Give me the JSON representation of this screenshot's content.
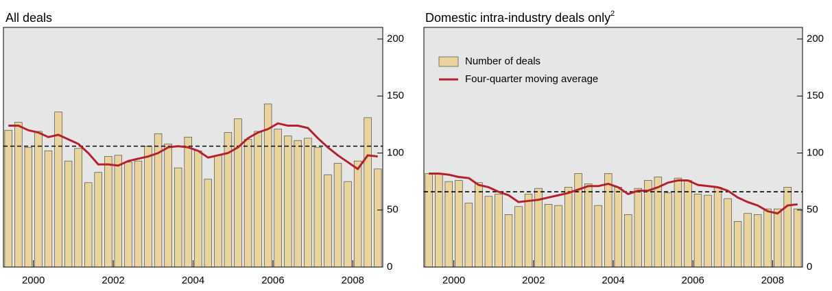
{
  "chart_data": [
    {
      "type": "bar_line",
      "title": "All deals",
      "x": [
        1999.375,
        1999.625,
        1999.875,
        2000.125,
        2000.375,
        2000.625,
        2000.875,
        2001.125,
        2001.375,
        2001.625,
        2001.875,
        2002.125,
        2002.375,
        2002.625,
        2002.875,
        2003.125,
        2003.375,
        2003.625,
        2003.875,
        2004.125,
        2004.375,
        2004.625,
        2004.875,
        2005.125,
        2005.375,
        2005.625,
        2005.875,
        2006.125,
        2006.375,
        2006.625,
        2006.875,
        2007.125,
        2007.375,
        2007.625,
        2007.875,
        2008.125,
        2008.375,
        2008.625
      ],
      "series": [
        {
          "name": "Number of deals",
          "kind": "bar",
          "color": "#e8d49c",
          "values": [
            120,
            127,
            105,
            119,
            102,
            136,
            93,
            104,
            74,
            83,
            97,
            98,
            92,
            93,
            106,
            117,
            108,
            87,
            114,
            102,
            77,
            98,
            118,
            130,
            112,
            119,
            143,
            121,
            115,
            111,
            113,
            105,
            81,
            91,
            75,
            93,
            131,
            86
          ]
        },
        {
          "name": "Four-quarter moving average",
          "kind": "line",
          "color": "#b5202e",
          "values": [
            124,
            124,
            120,
            118,
            114,
            116,
            112,
            108,
            100,
            90,
            90,
            89,
            93,
            95,
            97,
            100,
            105,
            106,
            105,
            102,
            96,
            98,
            100,
            105,
            113,
            118,
            121,
            126,
            124,
            124,
            122,
            113,
            105,
            98,
            92,
            86,
            98,
            97
          ]
        }
      ],
      "average_line": 106,
      "xlim": [
        1999.25,
        2008.75
      ],
      "xticks": [
        2000,
        2002,
        2004,
        2006,
        2008
      ],
      "ylim": [
        0,
        200
      ],
      "yticks": [
        0,
        50,
        100,
        150,
        200
      ],
      "legend": false
    },
    {
      "type": "bar_line",
      "title": "Domestic intra-industry deals only",
      "title_note": "2",
      "x": [
        1999.375,
        1999.625,
        1999.875,
        2000.125,
        2000.375,
        2000.625,
        2000.875,
        2001.125,
        2001.375,
        2001.625,
        2001.875,
        2002.125,
        2002.375,
        2002.625,
        2002.875,
        2003.125,
        2003.375,
        2003.625,
        2003.875,
        2004.125,
        2004.375,
        2004.625,
        2004.875,
        2005.125,
        2005.375,
        2005.625,
        2005.875,
        2006.125,
        2006.375,
        2006.625,
        2006.875,
        2007.125,
        2007.375,
        2007.625,
        2007.875,
        2008.125,
        2008.375,
        2008.625
      ],
      "series": [
        {
          "name": "Number of deals",
          "kind": "bar",
          "color": "#e8d49c",
          "values": [
            82,
            82,
            75,
            76,
            56,
            74,
            62,
            64,
            46,
            53,
            64,
            69,
            55,
            54,
            70,
            82,
            73,
            54,
            82,
            70,
            46,
            69,
            76,
            79,
            65,
            78,
            76,
            64,
            63,
            70,
            60,
            40,
            47,
            46,
            51,
            51,
            70,
            51
          ]
        },
        {
          "name": "Four-quarter moving average",
          "kind": "line",
          "color": "#b5202e",
          "values": [
            82,
            82,
            81,
            79,
            78,
            72,
            70,
            66,
            63,
            57,
            58,
            59,
            61,
            63,
            65,
            68,
            71,
            71,
            73,
            70,
            64,
            67,
            67,
            70,
            74,
            76,
            76,
            72,
            71,
            70,
            67,
            61,
            57,
            54,
            49,
            47,
            54,
            55
          ]
        }
      ],
      "average_line": 66,
      "xlim": [
        1999.25,
        2008.75
      ],
      "xticks": [
        2000,
        2002,
        2004,
        2006,
        2008
      ],
      "ylim": [
        0,
        200
      ],
      "yticks": [
        0,
        50,
        100,
        150,
        200
      ],
      "legend": true
    }
  ]
}
